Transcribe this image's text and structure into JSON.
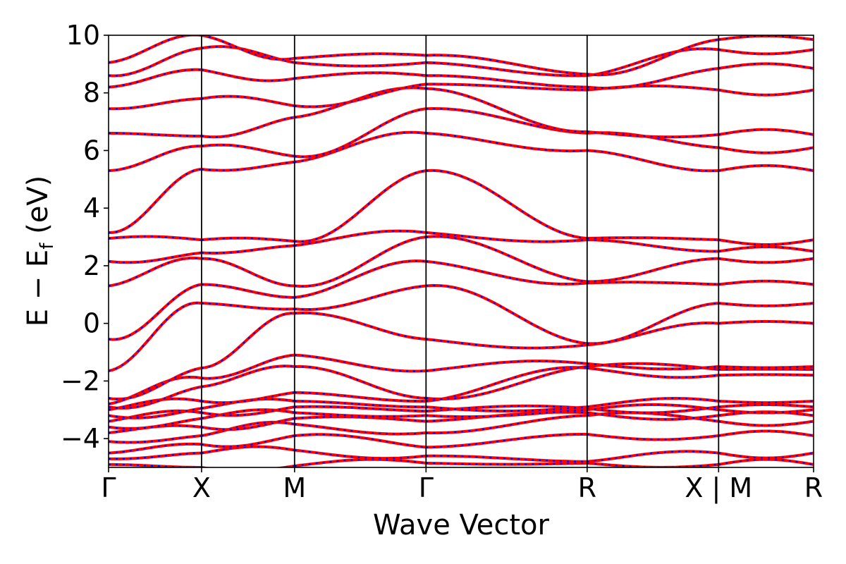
{
  "chart_data": {
    "type": "line",
    "title": "",
    "xlabel": "Wave Vector",
    "ylabel": "E − E",
    "ylabel_subscript": "f",
    "ylabel_unit": " (eV)",
    "ylim": [
      -5,
      10
    ],
    "y_ticks": [
      -4,
      -2,
      0,
      2,
      4,
      6,
      8,
      10
    ],
    "y_tick_labels": [
      "−4",
      "−2",
      "0",
      "2",
      "4",
      "6",
      "8",
      "10"
    ],
    "x_range": [
      0,
      1
    ],
    "k_points": [
      {
        "label": "Γ",
        "x": 0.0
      },
      {
        "label": "X",
        "x": 0.1319
      },
      {
        "label": "M",
        "x": 0.2638
      },
      {
        "label": "Γ",
        "x": 0.4503
      },
      {
        "label": "R",
        "x": 0.6788
      },
      {
        "label": "X | M",
        "x": 0.8653
      },
      {
        "label": "R",
        "x": 1.0
      }
    ],
    "grid": false,
    "legend": "none",
    "series_colors": {
      "solid": "#ff0000",
      "dashed": "#0000ff"
    },
    "segment_endpoints": [
      [
        -4.9,
        -4.7,
        -4.5,
        -4.1,
        -3.8,
        -3.6,
        -3.4,
        -3.2,
        -3.0,
        -2.9,
        -2.8,
        -2.6,
        -1.65,
        -0.55,
        1.3,
        2.15,
        2.95,
        3.15,
        5.3,
        6.6,
        7.45,
        8.2,
        8.6,
        9.05
      ],
      [
        -5.0,
        -4.5,
        -4.2,
        -3.9,
        -3.6,
        -3.3,
        -3.1,
        -2.95,
        -2.7,
        -2.2,
        -1.9,
        -1.55,
        0.7,
        1.35,
        2.25,
        2.45,
        2.9,
        5.35,
        6.15,
        6.5,
        7.8,
        8.8,
        9.55,
        10.0
      ],
      [
        -4.95,
        -4.4,
        -3.9,
        -3.5,
        -3.3,
        -3.1,
        -2.9,
        -2.7,
        -2.4,
        -1.5,
        -1.1,
        0.35,
        0.5,
        0.9,
        1.3,
        2.7,
        2.85,
        5.6,
        5.8,
        7.15,
        7.55,
        8.5,
        9.05,
        9.2
      ],
      [
        -4.85,
        -4.6,
        -4.3,
        -3.8,
        -3.4,
        -3.2,
        -3.05,
        -2.9,
        -2.7,
        -2.6,
        -1.65,
        -0.55,
        1.3,
        2.15,
        3.0,
        3.15,
        5.3,
        6.6,
        7.45,
        8.15,
        8.3,
        8.6,
        9.05,
        9.3
      ],
      [
        -4.85,
        -4.8,
        -3.85,
        -3.2,
        -3.1,
        -3.0,
        -2.95,
        -2.9,
        -1.55,
        -1.5,
        -1.4,
        -0.75,
        -0.7,
        1.4,
        1.45,
        2.9,
        2.95,
        6.0,
        6.6,
        6.65,
        8.1,
        8.2,
        8.6,
        8.65
      ],
      [
        -4.9,
        -4.5,
        -3.9,
        -3.4,
        -3.2,
        -3.0,
        -2.9,
        -2.7,
        -1.8,
        -1.6,
        -1.5,
        0.0,
        0.7,
        1.35,
        2.25,
        2.5,
        2.9,
        5.3,
        6.1,
        6.55,
        8.1,
        8.85,
        9.5,
        9.85
      ],
      [
        -4.9,
        -4.5,
        -3.9,
        -3.4,
        -3.2,
        -3.0,
        -2.9,
        -2.7,
        -1.8,
        -1.6,
        -1.5,
        0.0,
        0.7,
        1.35,
        2.25,
        2.5,
        2.9,
        5.3,
        6.1,
        6.55,
        8.1,
        8.85,
        9.5,
        9.85
      ]
    ]
  }
}
